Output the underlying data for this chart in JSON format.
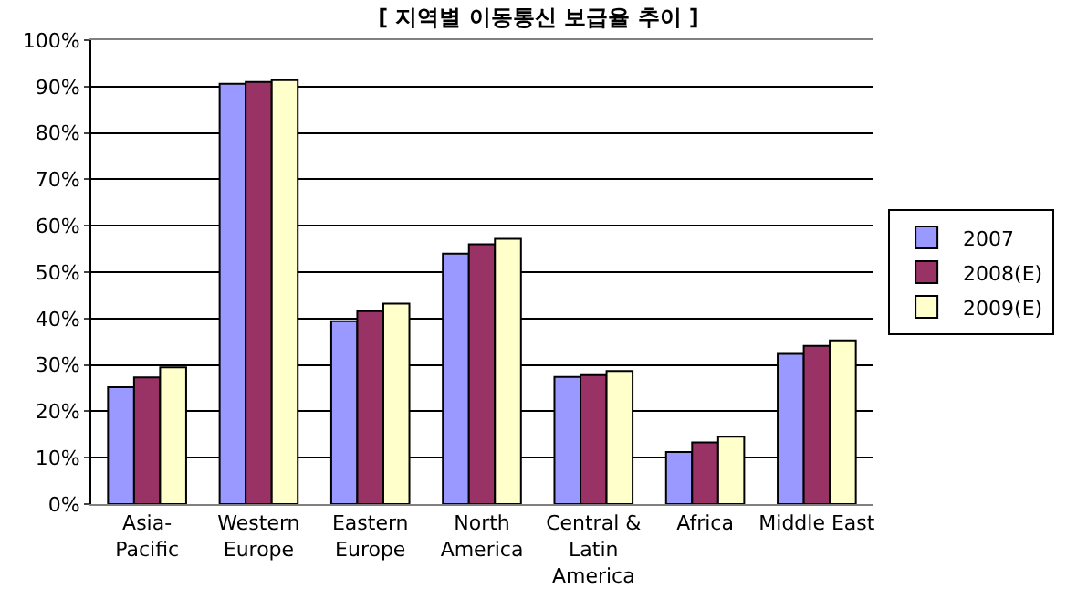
{
  "chart_data": {
    "type": "bar",
    "title": "[ 지역별 이동통신 보급율 추이 ]",
    "categories": [
      "Asia-\nPacific",
      "Western\nEurope",
      "Eastern\nEurope",
      "North\nAmerica",
      "Central &\nLatin\nAmerica",
      "Africa",
      "Middle East"
    ],
    "series": [
      {
        "name": "2007",
        "color": "#9999ff",
        "values": [
          25.2,
          90.6,
          39.4,
          54.0,
          27.4,
          11.2,
          32.4
        ]
      },
      {
        "name": "2008(E)",
        "color": "#993366",
        "values": [
          27.3,
          91.0,
          41.6,
          56.0,
          27.8,
          13.3,
          34.1
        ]
      },
      {
        "name": "2009(E)",
        "color": "#ffffcc",
        "values": [
          29.5,
          91.4,
          43.2,
          57.2,
          28.7,
          14.5,
          35.3
        ]
      }
    ],
    "ylim": [
      0,
      100
    ],
    "yticks": [
      {
        "value": 0,
        "label": "0%"
      },
      {
        "value": 10,
        "label": "10%"
      },
      {
        "value": 20,
        "label": "20%"
      },
      {
        "value": 30,
        "label": "30%"
      },
      {
        "value": 40,
        "label": "40%"
      },
      {
        "value": 50,
        "label": "50%"
      },
      {
        "value": 60,
        "label": "60%"
      },
      {
        "value": 70,
        "label": "70%"
      },
      {
        "value": 80,
        "label": "80%"
      },
      {
        "value": 90,
        "label": "90%"
      },
      {
        "value": 100,
        "label": "100%"
      }
    ],
    "grid": "y",
    "legend": "right"
  }
}
